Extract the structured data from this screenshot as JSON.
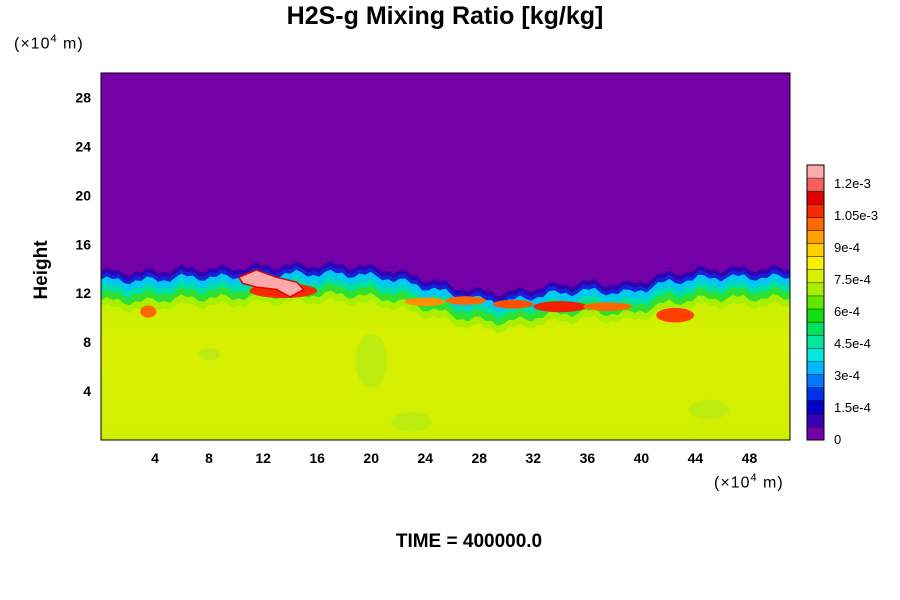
{
  "chart_data": {
    "type": "heatmap",
    "title": "H2S-g Mixing Ratio [kg/kg]",
    "ylabel": "Height",
    "xlabel": "",
    "y_unit": {
      "prefix": "(×10",
      "exp": "4",
      "suffix": " m)"
    },
    "x_unit": {
      "prefix": "(×10",
      "exp": "4",
      "suffix": " m)"
    },
    "xlim": [
      0,
      51
    ],
    "ylim": [
      0,
      30
    ],
    "x_ticks": [
      "4",
      "8",
      "12",
      "16",
      "20",
      "24",
      "28",
      "32",
      "36",
      "40",
      "44",
      "48"
    ],
    "y_ticks": [
      "4",
      "8",
      "12",
      "16",
      "20",
      "24",
      "28"
    ],
    "colorbar": {
      "range": [
        0,
        0.00129
      ],
      "tick_labels": [
        "0",
        "1.5e-4",
        "3e-4",
        "4.5e-4",
        "6e-4",
        "7.5e-4",
        "9e-4",
        "1.05e-3",
        "1.2e-3"
      ],
      "tick_values": [
        0,
        0.00015,
        0.0003,
        0.00045,
        0.0006,
        0.00075,
        0.0009,
        0.00105,
        0.0012
      ],
      "colors": [
        "#7400a8",
        "#3a00b8",
        "#0000c8",
        "#0030e8",
        "#0078ff",
        "#00b8ff",
        "#00e8e0",
        "#00e8a0",
        "#00e060",
        "#10e010",
        "#60e800",
        "#a8f000",
        "#d8f000",
        "#f8f000",
        "#ffd000",
        "#ffa000",
        "#ff6800",
        "#f82800",
        "#e00000",
        "#f86060",
        "#ffaaaa"
      ]
    },
    "field_levels": {
      "upper_air": 0,
      "lower_layer": 0.00085,
      "band_peak": 0.00108,
      "pink_patch": 0.00126
    },
    "layer_top_profile": {
      "x": [
        0,
        3,
        6,
        9,
        12,
        15,
        18,
        21,
        24,
        27,
        30,
        33,
        36,
        39,
        42,
        45,
        48,
        51
      ],
      "y": [
        13.8,
        13.7,
        14.0,
        14.0,
        14.2,
        14.3,
        14.3,
        14.0,
        13.2,
        12.3,
        12.0,
        12.6,
        12.9,
        12.7,
        13.6,
        14.0,
        14.0,
        14.0
      ]
    },
    "grid": false,
    "legend": "colorbar-right"
  },
  "footer": {
    "time": "TIME = 400000.0"
  }
}
